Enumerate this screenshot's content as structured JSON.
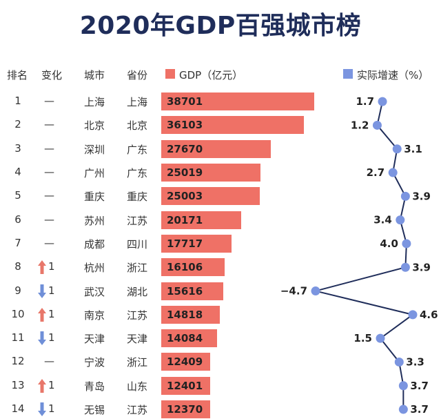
{
  "chart_data": {
    "type": "bar+line",
    "title": "2020年GDP百强城市榜",
    "columns": {
      "rank": "排名",
      "change": "变化",
      "city": "城市",
      "province": "省份",
      "gdp": "GDP（亿元）",
      "growth": "实际增速（%）"
    },
    "rows": [
      {
        "rank": "1",
        "change": "—",
        "city": "上海",
        "province": "上海",
        "gdp": 38701,
        "growth": 1.7
      },
      {
        "rank": "2",
        "change": "—",
        "city": "北京",
        "province": "北京",
        "gdp": 36103,
        "growth": 1.2
      },
      {
        "rank": "3",
        "change": "—",
        "city": "深圳",
        "province": "广东",
        "gdp": 27670,
        "growth": 3.1
      },
      {
        "rank": "4",
        "change": "—",
        "city": "广州",
        "province": "广东",
        "gdp": 25019,
        "growth": 2.7
      },
      {
        "rank": "5",
        "change": "—",
        "city": "重庆",
        "province": "重庆",
        "gdp": 25003,
        "growth": 3.9
      },
      {
        "rank": "6",
        "change": "—",
        "city": "苏州",
        "province": "江苏",
        "gdp": 20171,
        "growth": 3.4
      },
      {
        "rank": "7",
        "change": "—",
        "city": "成都",
        "province": "四川",
        "gdp": 17717,
        "growth": 4.0
      },
      {
        "rank": "8",
        "change": "1",
        "direction": "up",
        "city": "杭州",
        "province": "浙江",
        "gdp": 16106,
        "growth": 3.9
      },
      {
        "rank": "9",
        "change": "1",
        "direction": "down",
        "city": "武汉",
        "province": "湖北",
        "gdp": 15616,
        "growth": -4.7
      },
      {
        "rank": "10",
        "change": "1",
        "direction": "up",
        "city": "南京",
        "province": "江苏",
        "gdp": 14818,
        "growth": 4.6
      },
      {
        "rank": "11",
        "change": "1",
        "direction": "down",
        "city": "天津",
        "province": "天津",
        "gdp": 14084,
        "growth": 1.5
      },
      {
        "rank": "12",
        "change": "—",
        "city": "宁波",
        "province": "浙江",
        "gdp": 12409,
        "growth": 3.3
      },
      {
        "rank": "13",
        "change": "1",
        "direction": "up",
        "city": "青岛",
        "province": "山东",
        "gdp": 12401,
        "growth": 3.7
      },
      {
        "rank": "14",
        "change": "1",
        "direction": "down",
        "city": "无锡",
        "province": "江苏",
        "gdp": 12370,
        "growth": 3.7
      }
    ],
    "gdp_max": 38701,
    "growth_range": [
      -4.7,
      4.6
    ],
    "growth_label_side": [
      "left",
      "left",
      "right",
      "left",
      "right",
      "left",
      "left",
      "right",
      "left",
      "right",
      "left",
      "right",
      "right",
      "right"
    ]
  },
  "colors": {
    "bar": "#ef7166",
    "line": "#1f2d5a",
    "point": "#7b95e0",
    "title": "#1f2d5a",
    "arrow_up": "#e8776a",
    "arrow_down": "#6f8fd8"
  }
}
